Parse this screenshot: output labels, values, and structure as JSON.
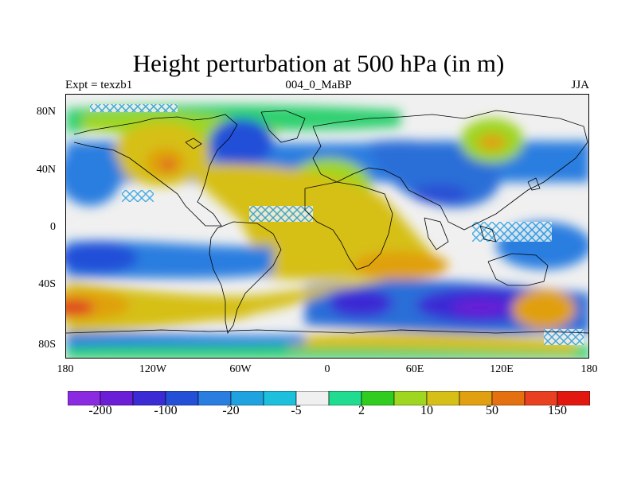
{
  "title": "Height perturbation at 500 hPa (in m)",
  "subtitle_left": "Expt = texzb1",
  "subtitle_center": "004_0_MaBP",
  "subtitle_right": "JJA",
  "y_ticks": [
    "80N",
    "40N",
    "0",
    "40S",
    "80S"
  ],
  "x_ticks": [
    "180",
    "120W",
    "60W",
    "0",
    "60E",
    "120E",
    "180"
  ],
  "colorbar": {
    "colors": [
      "#8a2be2",
      "#6a1fd6",
      "#3a2bd4",
      "#2450d8",
      "#2a7ee0",
      "#1fa2e0",
      "#1cc0dc",
      "#f0f0f0",
      "#20dc90",
      "#30cc20",
      "#9ed620",
      "#d6c018",
      "#e0a010",
      "#e47010",
      "#e84020",
      "#e01810"
    ],
    "labels": [
      "-200",
      "-100",
      "-20",
      "-5",
      "2",
      "10",
      "50",
      "150"
    ]
  },
  "map": {
    "projection": "cylindrical equidistant",
    "lon_range": [
      -180,
      180
    ],
    "lat_range": [
      -90,
      90
    ],
    "field_units": "m"
  }
}
